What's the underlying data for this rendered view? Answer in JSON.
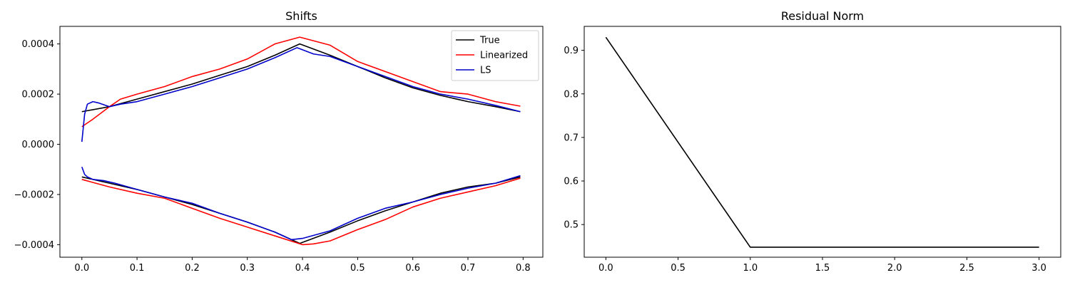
{
  "chart_data": [
    {
      "type": "line",
      "title": "Shifts",
      "xlabel": "",
      "ylabel": "",
      "xlim": [
        -0.0398,
        0.8358
      ],
      "ylim": [
        -0.00045,
        0.00047
      ],
      "xticks": [
        0.0,
        0.1,
        0.2,
        0.3,
        0.4,
        0.5,
        0.6,
        0.7,
        0.8
      ],
      "xtick_labels": [
        "0.0",
        "0.1",
        "0.2",
        "0.3",
        "0.4",
        "0.5",
        "0.6",
        "0.7",
        "0.8"
      ],
      "yticks": [
        -0.0004,
        -0.0002,
        0.0,
        0.0002,
        0.0004
      ],
      "ytick_labels": [
        "−0.0004",
        "−0.0002",
        "0.0000",
        "0.0002",
        "0.0004"
      ],
      "grid": false,
      "legend": "top-right",
      "series": [
        {
          "name": "True",
          "color": "#000000",
          "x": [
            0.0,
            0.05,
            0.1,
            0.15,
            0.2,
            0.25,
            0.3,
            0.35,
            0.395,
            0.45,
            0.5,
            0.55,
            0.6,
            0.65,
            0.7,
            0.75,
            0.795
          ],
          "y": [
            0.00013,
            0.00015,
            0.00018,
            0.00021,
            0.00024,
            0.000275,
            0.00031,
            0.000355,
            0.0004,
            0.000355,
            0.00031,
            0.000265,
            0.000225,
            0.000195,
            0.00017,
            0.00015,
            0.00013
          ]
        },
        {
          "name": "Linearized",
          "color": "#ff0000",
          "x": [
            0.0,
            0.02,
            0.05,
            0.07,
            0.1,
            0.15,
            0.2,
            0.25,
            0.3,
            0.35,
            0.395,
            0.45,
            0.5,
            0.55,
            0.6,
            0.65,
            0.7,
            0.75,
            0.795
          ],
          "y": [
            7e-05,
            0.0001,
            0.00015,
            0.00018,
            0.0002,
            0.00023,
            0.00027,
            0.0003,
            0.00034,
            0.0004,
            0.000427,
            0.000395,
            0.00033,
            0.00029,
            0.00025,
            0.00021,
            0.0002,
            0.00017,
            0.000152
          ]
        },
        {
          "name": "LS",
          "color": "#0000cc",
          "x": [
            0.0,
            0.005,
            0.01,
            0.02,
            0.03,
            0.05,
            0.07,
            0.1,
            0.15,
            0.2,
            0.25,
            0.3,
            0.35,
            0.39,
            0.42,
            0.45,
            0.5,
            0.55,
            0.6,
            0.65,
            0.7,
            0.75,
            0.795
          ],
          "y": [
            1e-05,
            0.00012,
            0.00016,
            0.00017,
            0.000165,
            0.00015,
            0.00016,
            0.00017,
            0.0002,
            0.00023,
            0.000265,
            0.0003,
            0.000345,
            0.000385,
            0.00036,
            0.00035,
            0.00031,
            0.00027,
            0.00023,
            0.0002,
            0.00018,
            0.000155,
            0.00013
          ]
        },
        {
          "name": "",
          "color": "#000000",
          "x": [
            0.0,
            0.05,
            0.1,
            0.15,
            0.2,
            0.25,
            0.3,
            0.35,
            0.395,
            0.45,
            0.5,
            0.55,
            0.6,
            0.65,
            0.7,
            0.75,
            0.795
          ],
          "y": [
            -0.00013,
            -0.000155,
            -0.00018,
            -0.00021,
            -0.00024,
            -0.000275,
            -0.00031,
            -0.00035,
            -0.000395,
            -0.00035,
            -0.000305,
            -0.000265,
            -0.00023,
            -0.000195,
            -0.00017,
            -0.000155,
            -0.00013
          ]
        },
        {
          "name": "",
          "color": "#ff0000",
          "x": [
            0.0,
            0.05,
            0.1,
            0.15,
            0.2,
            0.25,
            0.3,
            0.35,
            0.4,
            0.42,
            0.45,
            0.5,
            0.55,
            0.6,
            0.65,
            0.7,
            0.75,
            0.795
          ],
          "y": [
            -0.00014,
            -0.00017,
            -0.000195,
            -0.000215,
            -0.000255,
            -0.000295,
            -0.00033,
            -0.000365,
            -0.0004,
            -0.000397,
            -0.000385,
            -0.00034,
            -0.0003,
            -0.00025,
            -0.000215,
            -0.00019,
            -0.000165,
            -0.000135
          ]
        },
        {
          "name": "",
          "color": "#0000cc",
          "x": [
            0.0,
            0.005,
            0.01,
            0.02,
            0.04,
            0.06,
            0.1,
            0.15,
            0.2,
            0.25,
            0.3,
            0.35,
            0.38,
            0.4,
            0.45,
            0.5,
            0.55,
            0.6,
            0.65,
            0.7,
            0.75,
            0.795
          ],
          "y": [
            -9e-05,
            -0.00012,
            -0.00013,
            -0.00014,
            -0.000145,
            -0.000155,
            -0.00018,
            -0.00021,
            -0.000235,
            -0.000275,
            -0.00031,
            -0.00035,
            -0.00038,
            -0.000375,
            -0.000345,
            -0.000295,
            -0.000255,
            -0.00023,
            -0.0002,
            -0.000175,
            -0.000155,
            -0.000125
          ]
        }
      ]
    },
    {
      "type": "line",
      "title": "Residual Norm",
      "xlabel": "",
      "ylabel": "",
      "xlim": [
        -0.15,
        3.15
      ],
      "ylim": [
        0.425,
        0.955
      ],
      "xticks": [
        0.0,
        0.5,
        1.0,
        1.5,
        2.0,
        2.5,
        3.0
      ],
      "xtick_labels": [
        "0.0",
        "0.5",
        "1.0",
        "1.5",
        "2.0",
        "2.5",
        "3.0"
      ],
      "yticks": [
        0.5,
        0.6,
        0.7,
        0.8,
        0.9
      ],
      "ytick_labels": [
        "0.5",
        "0.6",
        "0.7",
        "0.8",
        "0.9"
      ],
      "grid": false,
      "legend": "none",
      "series": [
        {
          "name": "",
          "color": "#000000",
          "x": [
            0,
            1,
            2,
            3
          ],
          "y": [
            0.93,
            0.448,
            0.448,
            0.448
          ]
        }
      ]
    }
  ]
}
